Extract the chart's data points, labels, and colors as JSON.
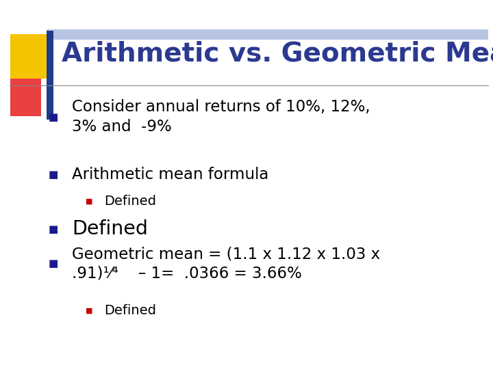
{
  "title": "Arithmetic vs. Geometric Mean",
  "title_color": "#2B3990",
  "title_fontsize": 28,
  "background_color": "#FFFFFF",
  "bullet_color": "#1a1a8c",
  "sub_bullet_color": "#CC0000",
  "text_color": "#000000",
  "header_bar": {
    "yellow": "#F5C400",
    "red": "#E84040",
    "blue_dark": "#1F3B8C",
    "blue_light": "#6080C0"
  },
  "line_color": "#888888",
  "entries": [
    {
      "level": 1,
      "line1": "Consider annual returns of 10%, 12%,",
      "line2": "3% and  -9%"
    },
    {
      "level": 1,
      "line1": "Arithmetic mean formula",
      "line2": null
    },
    {
      "level": 2,
      "line1": "Defined",
      "line2": null
    },
    {
      "level": 1,
      "line1": "Defined",
      "line2": null,
      "large": true
    },
    {
      "level": 1,
      "line1": "Geometric mean = (1.1 x 1.12 x 1.03 x",
      "line2": ".91)¹⁄⁴    – 1=  .0366 = 3.66%"
    },
    {
      "level": 2,
      "line1": "Defined",
      "line2": null
    }
  ]
}
